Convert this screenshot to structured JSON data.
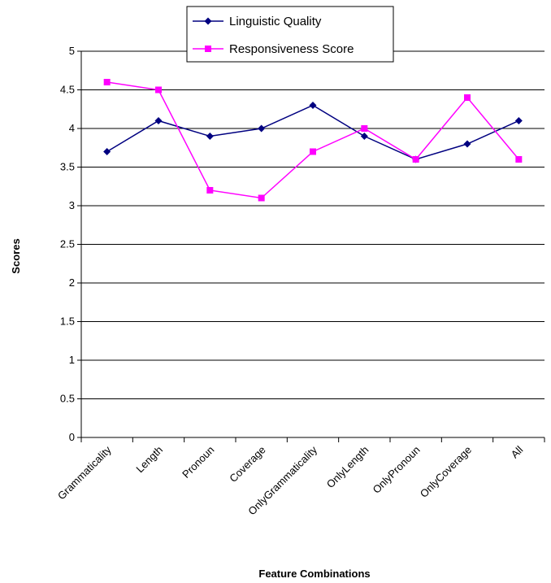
{
  "chart_data": {
    "type": "line",
    "title": "",
    "xlabel": "Feature Combinations",
    "ylabel": "Scores",
    "ylim": [
      0,
      5
    ],
    "yticks": [
      "0",
      "0.5",
      "1",
      "1.5",
      "2",
      "2.5",
      "3",
      "3.5",
      "4",
      "4.5",
      "5"
    ],
    "grid": true,
    "legend_position": "top-center",
    "categories": [
      "Grammaticality",
      "Length",
      "Pronoun",
      "Coverage",
      "OnlyGrammaticality",
      "OnlyLength",
      "OnlyPronoun",
      "OnlyCoverage",
      "All"
    ],
    "series": [
      {
        "name": "Linguistic Quality",
        "color": "#000080",
        "marker": "diamond",
        "values": [
          3.7,
          4.1,
          3.9,
          4.0,
          4.3,
          3.9,
          3.6,
          3.8,
          4.1
        ]
      },
      {
        "name": "Responsiveness Score",
        "color": "#ff00ff",
        "marker": "square",
        "values": [
          4.6,
          4.5,
          3.2,
          3.1,
          3.7,
          4.0,
          3.6,
          4.4,
          3.6
        ]
      }
    ]
  }
}
